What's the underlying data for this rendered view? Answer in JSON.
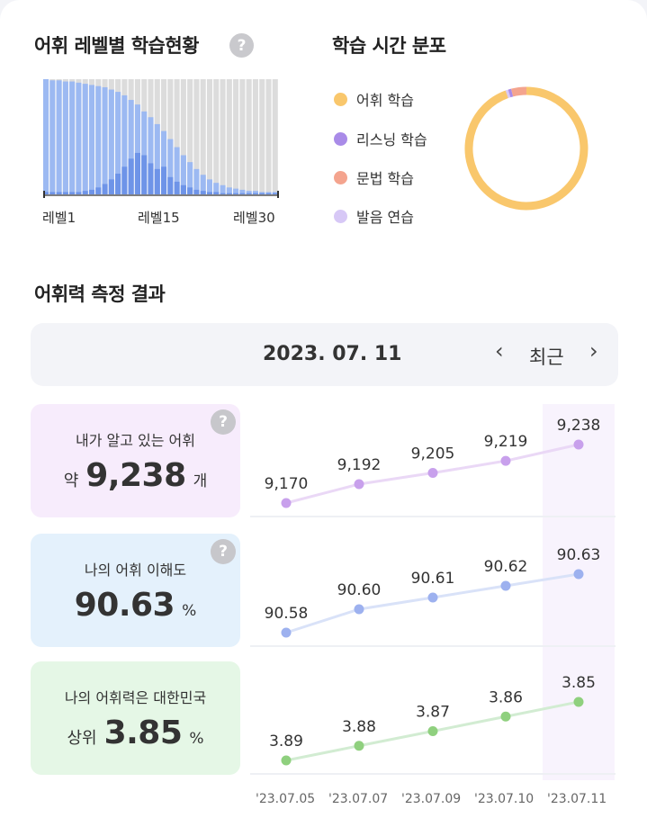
{
  "level_section": {
    "title": "어휘 레벨별 학습현황",
    "help_icon": "?",
    "x_labels": [
      "레벨1",
      "레벨15",
      "레벨30"
    ],
    "colors": {
      "total": "#9cb9f2",
      "learned": "#6e94e8",
      "remaining": "#dcdcdc"
    }
  },
  "time_section": {
    "title": "학습 시간 분포",
    "legend": [
      {
        "label": "어휘 학습",
        "color": "#f9c76c"
      },
      {
        "label": "리스닝 학습",
        "color": "#a98be8"
      },
      {
        "label": "문법 학습",
        "color": "#f4a48e"
      },
      {
        "label": "발음 연습",
        "color": "#d7c8f6"
      }
    ]
  },
  "result_section": {
    "title": "어휘력 측정 결과",
    "date": "2023. 07. 11",
    "prev_icon": "‹",
    "next_icon": "›",
    "recent_label": "최근"
  },
  "metrics": [
    {
      "label": "내가 알고 있는 어휘",
      "prefix": "약",
      "value": "9,238",
      "unit": "개",
      "bg": "#f7ecfc",
      "has_help": true,
      "help_icon": "?"
    },
    {
      "label": "나의 어휘 이해도",
      "prefix": "",
      "value": "90.63",
      "unit": "%",
      "bg": "#e4f1fc",
      "has_help": true,
      "help_icon": "?"
    },
    {
      "label": "나의 어휘력은 대한민국",
      "prefix": "상위",
      "value": "3.85",
      "unit": "%",
      "bg": "#e5f7e6",
      "has_help": false,
      "help_icon": ""
    }
  ],
  "chart_data": [
    {
      "type": "bar",
      "stacked": "overlay",
      "x_tick_labels": [
        "레벨1",
        "레벨15",
        "레벨30"
      ],
      "levels": [
        1,
        2,
        3,
        4,
        5,
        6,
        7,
        8,
        9,
        10,
        11,
        12,
        13,
        14,
        15,
        16,
        17,
        18,
        19,
        20,
        21,
        22,
        23,
        24,
        25,
        26,
        27,
        28,
        29,
        30,
        31,
        32,
        33,
        34,
        35,
        36
      ],
      "series": [
        {
          "values": [
            100,
            99,
            99,
            98,
            98,
            97,
            96,
            95,
            94,
            93,
            91,
            89,
            86,
            82,
            78,
            72,
            67,
            61,
            55,
            48,
            41,
            34,
            28,
            22,
            17,
            13,
            10,
            8,
            6,
            5,
            4,
            3,
            3,
            2,
            2,
            2
          ]
        },
        {
          "values": [
            2,
            2,
            2,
            2,
            2,
            2,
            3,
            4,
            6,
            9,
            13,
            18,
            24,
            31,
            36,
            34,
            27,
            22,
            24,
            15,
            11,
            8,
            6,
            4,
            3,
            2,
            2,
            1,
            1,
            1,
            1,
            1,
            1,
            1,
            1,
            1
          ]
        }
      ],
      "ylim": [
        0,
        100
      ]
    },
    {
      "type": "pie",
      "donut": true,
      "slices": [
        {
          "label": "어휘 학습",
          "value": 94.5
        },
        {
          "label": "리스닝 학습",
          "value": 0.8
        },
        {
          "label": "문법 학습",
          "value": 4.0
        },
        {
          "label": "발음 연습",
          "value": 0.7
        }
      ]
    },
    {
      "type": "line",
      "x": [
        "'23.07.05",
        "'23.07.07",
        "'23.07.09",
        "'23.07.10",
        "'23.07.11"
      ],
      "series": [
        {
          "values": [
            9170,
            9192,
            9205,
            9219,
            9238
          ],
          "labels": [
            "9,170",
            "9,192",
            "9,205",
            "9,219",
            "9,238"
          ],
          "color": "#c8a0ec",
          "line": "#ead8f6"
        },
        {
          "values": [
            90.58,
            90.6,
            90.61,
            90.62,
            90.63
          ],
          "labels": [
            "90.58",
            "90.60",
            "90.61",
            "90.62",
            "90.63"
          ],
          "color": "#9db1ef",
          "line": "#d9e2f8"
        },
        {
          "values": [
            3.89,
            3.88,
            3.87,
            3.86,
            3.85
          ],
          "labels": [
            "3.89",
            "3.88",
            "3.87",
            "3.86",
            "3.85"
          ],
          "color": "#8fd07e",
          "line": "#d2ecd2"
        }
      ]
    }
  ]
}
